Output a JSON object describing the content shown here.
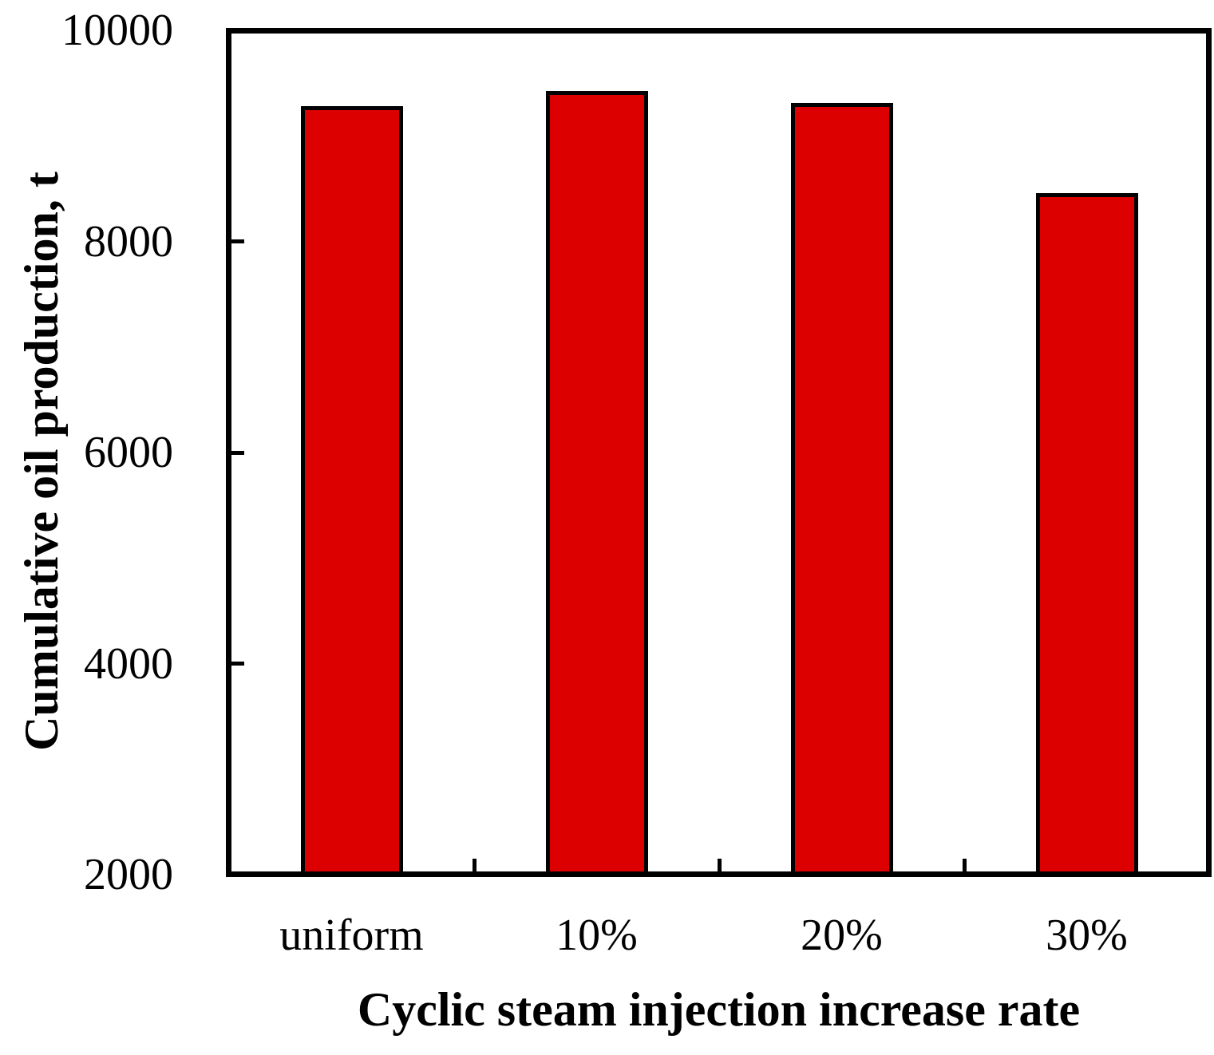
{
  "chart_data": {
    "type": "bar",
    "title": "",
    "categories": [
      "uniform",
      "10%",
      "20%",
      "30%"
    ],
    "values": [
      9260,
      9410,
      9290,
      8440
    ],
    "xlabel": "Cyclic steam injection increase rate",
    "ylabel": "Cumulative oil production, t",
    "ylim": [
      2000,
      10000
    ],
    "yticks": [
      2000,
      4000,
      6000,
      8000,
      10000
    ],
    "grid": false,
    "legend_position": "none",
    "colors": {
      "bar_fill": "#dd0000",
      "bar_border": "#000000",
      "axis": "#000000",
      "background": "#ffffff",
      "text": "#000000"
    }
  }
}
